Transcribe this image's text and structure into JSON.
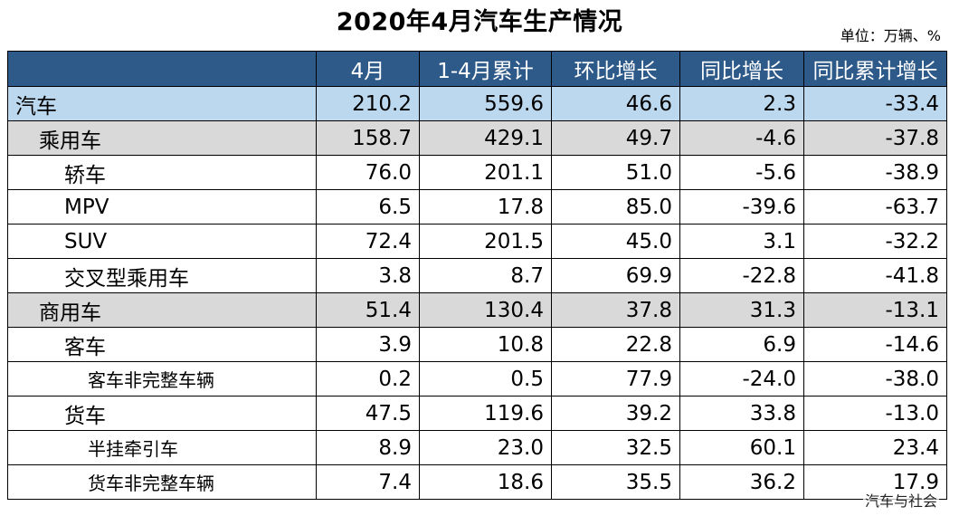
{
  "title": "2020年4月汽车生产情况",
  "unit": "单位：万辆、%",
  "table": {
    "headers": [
      "",
      "4月",
      "1-4月累计",
      "环比增长",
      "同比增长",
      "同比累计增长"
    ],
    "rows": [
      {
        "name": "汽车",
        "level": 0,
        "values": [
          "210.2",
          "559.6",
          "46.6",
          "2.3",
          "-33.4"
        ]
      },
      {
        "name": "乘用车",
        "level": 1,
        "values": [
          "158.7",
          "429.1",
          "49.7",
          "-4.6",
          "-37.8"
        ]
      },
      {
        "name": "轿车",
        "level": 2,
        "values": [
          "76.0",
          "201.1",
          "51.0",
          "-5.6",
          "-38.9"
        ]
      },
      {
        "name": "MPV",
        "level": 2,
        "values": [
          "6.5",
          "17.8",
          "85.0",
          "-39.6",
          "-63.7"
        ]
      },
      {
        "name": "SUV",
        "level": 2,
        "values": [
          "72.4",
          "201.5",
          "45.0",
          "3.1",
          "-32.2"
        ]
      },
      {
        "name": "交叉型乘用车",
        "level": 2,
        "values": [
          "3.8",
          "8.7",
          "69.9",
          "-22.8",
          "-41.8"
        ]
      },
      {
        "name": "商用车",
        "level": 1,
        "values": [
          "51.4",
          "130.4",
          "37.8",
          "31.3",
          "-13.1"
        ]
      },
      {
        "name": "客车",
        "level": 2,
        "values": [
          "3.9",
          "10.8",
          "22.8",
          "6.9",
          "-14.6"
        ]
      },
      {
        "name": "客车非完整车辆",
        "level": 3,
        "values": [
          "0.2",
          "0.5",
          "77.9",
          "-24.0",
          "-38.0"
        ]
      },
      {
        "name": "货车",
        "level": 2,
        "values": [
          "47.5",
          "119.6",
          "39.2",
          "33.8",
          "-13.0"
        ]
      },
      {
        "name": "半挂牵引车",
        "level": 3,
        "values": [
          "8.9",
          "23.0",
          "32.5",
          "60.1",
          "23.4"
        ]
      },
      {
        "name": "货车非完整车辆",
        "level": 3,
        "values": [
          "7.4",
          "18.6",
          "35.5",
          "36.2",
          "17.9"
        ]
      }
    ]
  },
  "watermark": "汽车与社会"
}
